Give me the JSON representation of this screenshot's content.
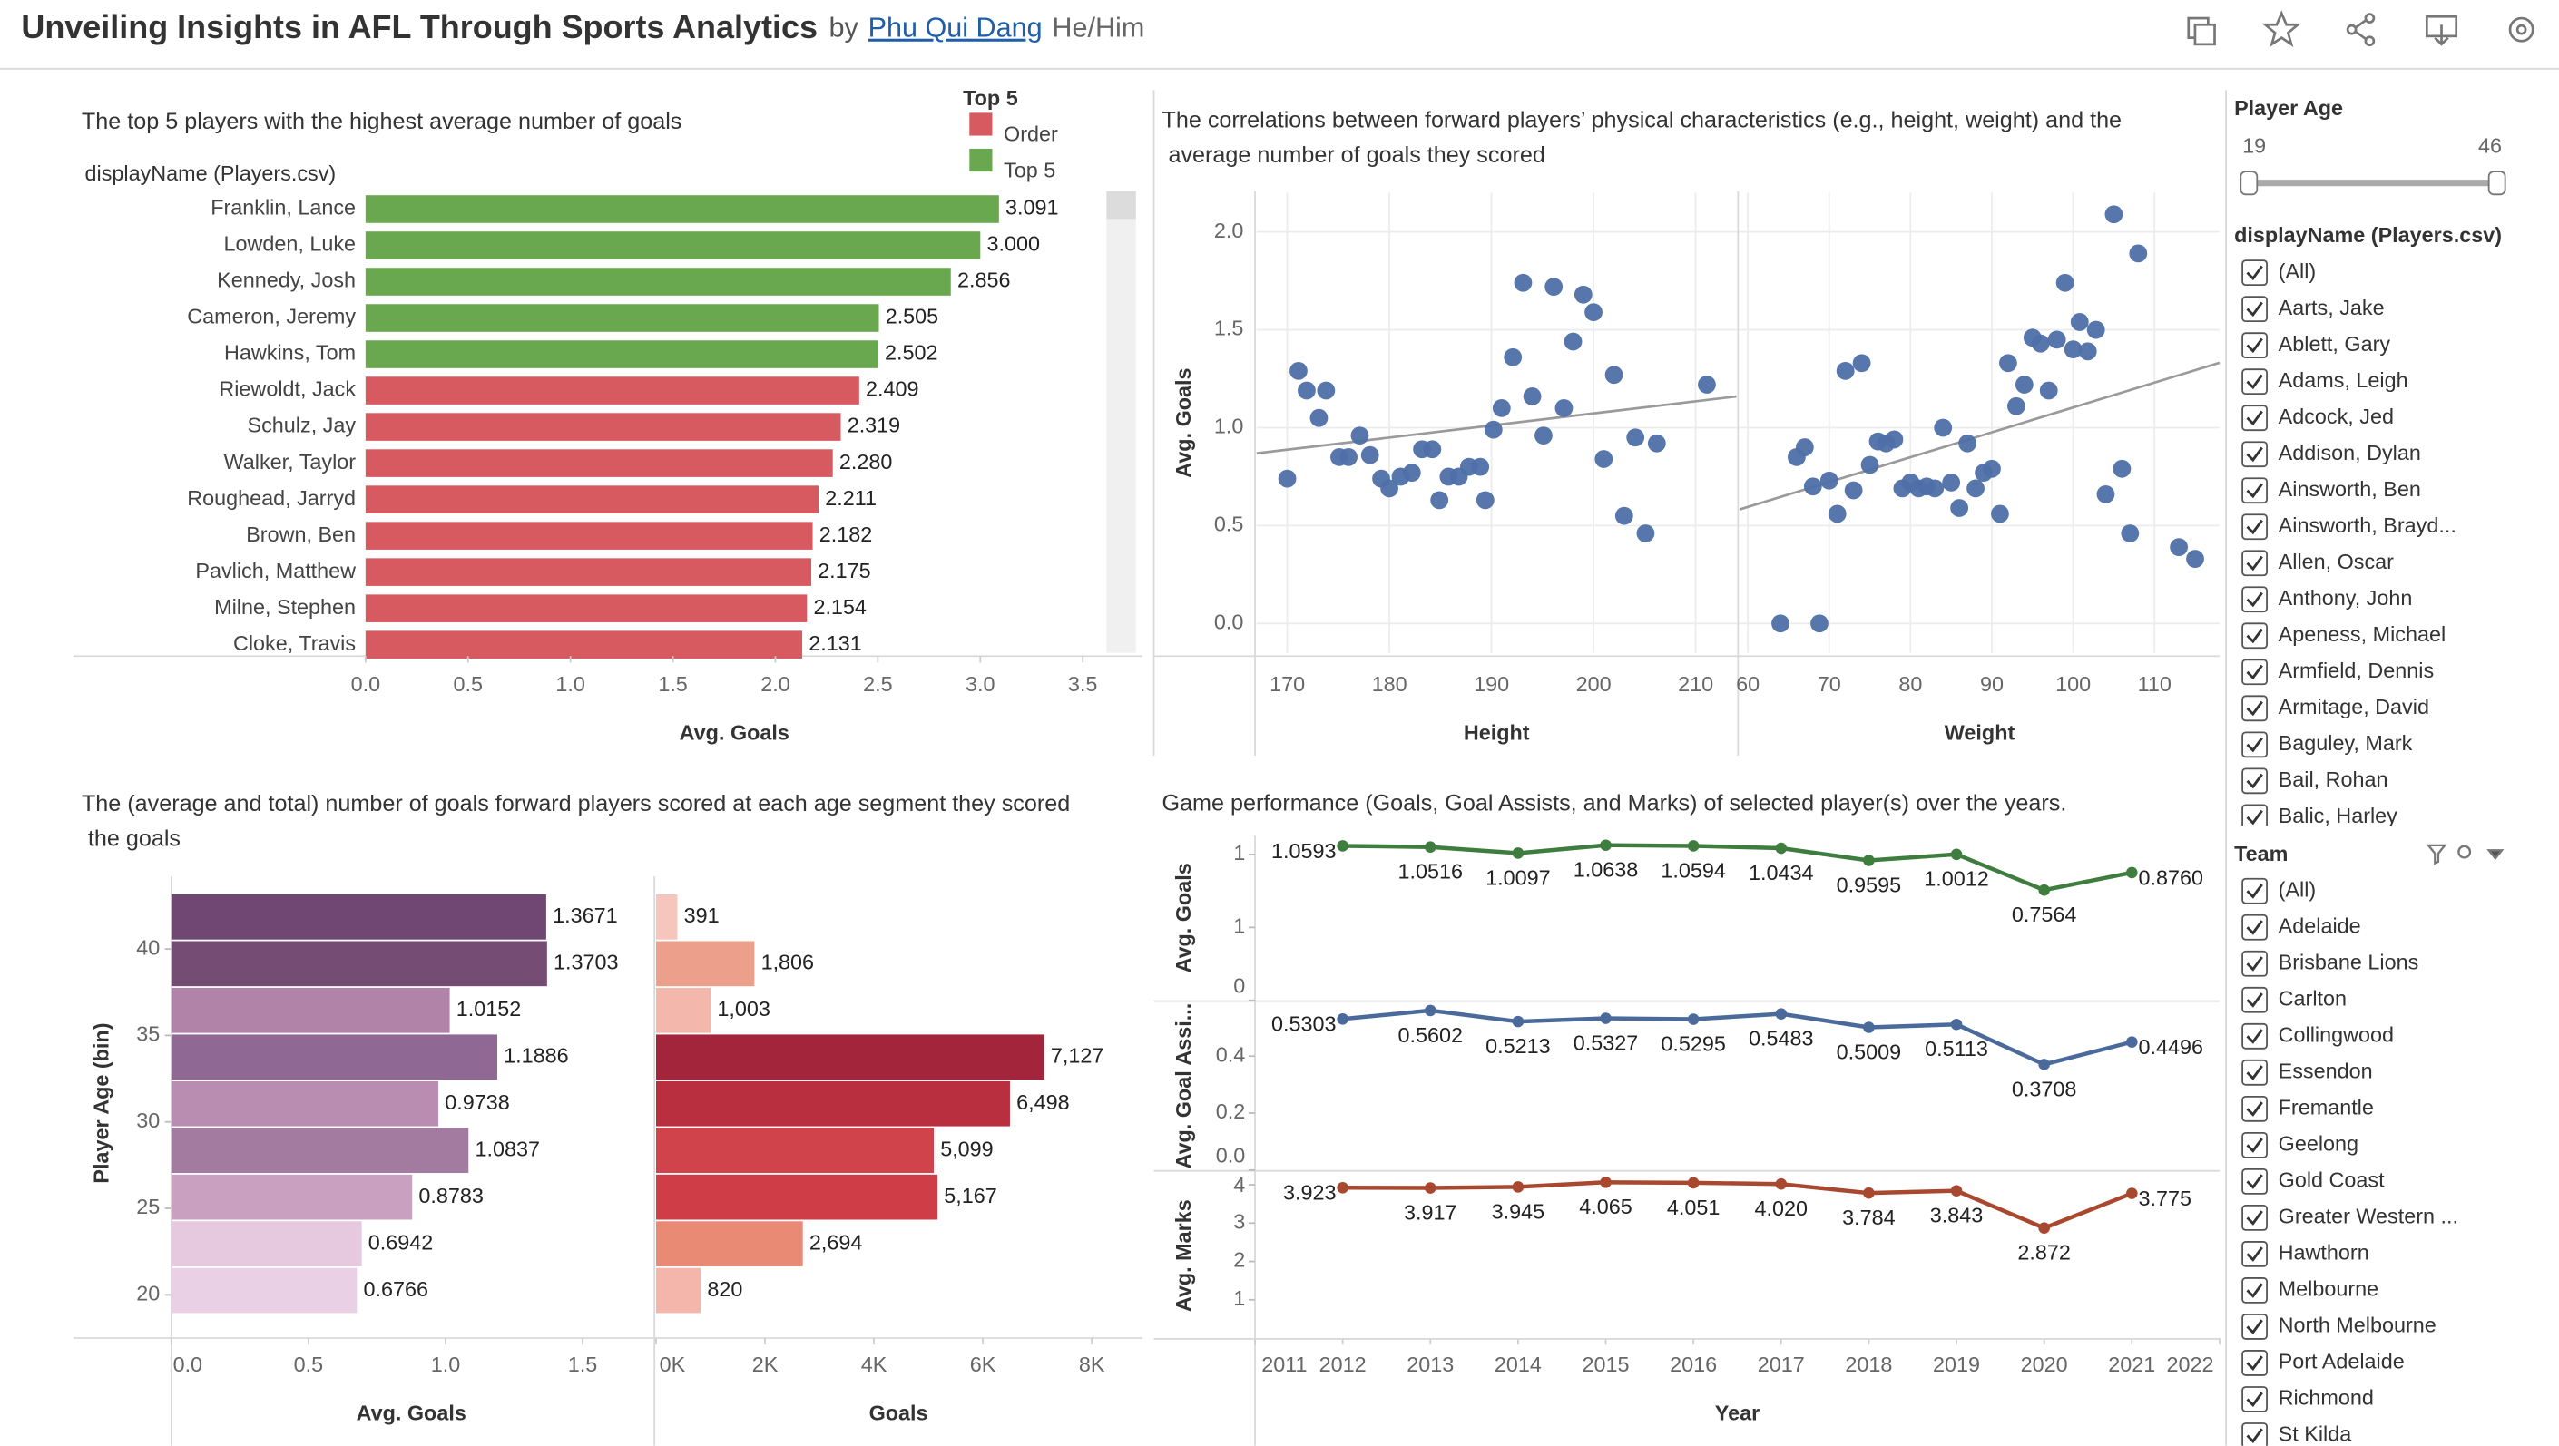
{
  "header": {
    "title": "Unveiling Insights in AFL Through Sports Analytics",
    "by": "by",
    "author": "Phu Qui Dang",
    "pronouns": "He/Him"
  },
  "chart_data": [
    {
      "type": "bar",
      "title": "The top 5 players with the highest average number of goals",
      "category_label": "displayName (Players.csv)",
      "x_label": "Avg. Goals",
      "legend_title": "Top 5",
      "categories": [
        "Franklin, Lance",
        "Lowden, Luke",
        "Kennedy, Josh",
        "Cameron, Jeremy",
        "Hawkins, Tom",
        "Riewoldt, Jack",
        "Schulz, Jay",
        "Walker, Taylor",
        "Roughead, Jarryd",
        "Brown, Ben",
        "Pavlich, Matthew",
        "Milne, Stephen",
        "Cloke, Travis"
      ],
      "series": [
        {
          "name": "Order",
          "color": "#d65a5f",
          "values": [
            null,
            null,
            null,
            null,
            null,
            2.409,
            2.319,
            2.28,
            2.211,
            2.182,
            2.175,
            2.154,
            2.131
          ],
          "value_labels": [
            null,
            null,
            null,
            null,
            null,
            "2.409",
            "2.319",
            "2.280",
            "2.211",
            "2.182",
            "2.175",
            "2.154",
            "2.131"
          ]
        },
        {
          "name": "Top 5",
          "color": "#6aa84f",
          "values": [
            3.091,
            3.0,
            2.856,
            2.505,
            2.502,
            null,
            null,
            null,
            null,
            null,
            null,
            null,
            null
          ],
          "value_labels": [
            "3.091",
            "3.000",
            "2.856",
            "2.505",
            "2.502",
            null,
            null,
            null,
            null,
            null,
            null,
            null,
            null
          ]
        }
      ],
      "xlim": [
        0,
        3.6
      ],
      "xticks": [
        {
          "value": 0,
          "label": "0.0"
        },
        0.5,
        {
          "value": 1,
          "label": "1.0"
        },
        1.5,
        {
          "value": 2,
          "label": "2.0"
        },
        2.5,
        {
          "value": 3,
          "label": "3.0"
        },
        3.5
      ]
    },
    {
      "type": "scatter",
      "title": "The correlations between forward players’ physical characteristics (e.g., height, weight) and the average number of goals they scored",
      "y_label": "Avg. Goals",
      "color": "#4e6fa8",
      "trend_color": "#9a9a9a",
      "grid": true,
      "ylim": [
        -0.15,
        2.2
      ],
      "yticks": [
        {
          "value": 0,
          "label": "0.0"
        },
        0.5,
        {
          "value": 1,
          "label": "1.0"
        },
        1.5,
        {
          "value": 2,
          "label": "2.0"
        }
      ],
      "panels": [
        {
          "x_label": "Height",
          "xlim": [
            167,
            214
          ],
          "xticks": [
            170,
            180,
            190,
            200,
            210
          ],
          "x": [
            170,
            171.1,
            171.9,
            173.8,
            173.1,
            175.1,
            176,
            177.1,
            178.1,
            179.2,
            180,
            181.1,
            182.2,
            183.2,
            184.2,
            184.9,
            185.8,
            186.8,
            187.8,
            188.9,
            189.4,
            190.2,
            191,
            192.1,
            193.1,
            194,
            195.1,
            196.1,
            197.1,
            198,
            199,
            200,
            201,
            202,
            203,
            204.1,
            205.1,
            206.2,
            211.1
          ],
          "values": [
            0.74,
            1.29,
            1.19,
            1.19,
            1.05,
            0.85,
            0.85,
            0.96,
            0.86,
            0.74,
            0.69,
            0.75,
            0.77,
            0.89,
            0.89,
            0.63,
            0.75,
            0.75,
            0.8,
            0.8,
            0.63,
            0.99,
            1.1,
            1.36,
            1.74,
            1.16,
            0.96,
            1.72,
            1.1,
            1.44,
            1.68,
            1.59,
            0.84,
            1.27,
            0.55,
            0.95,
            0.46,
            0.92,
            1.22
          ]
        },
        {
          "x_label": "Weight",
          "xlim": [
            59,
            118
          ],
          "xticks": [
            60,
            70,
            80,
            90,
            100,
            110
          ],
          "x": [
            64,
            68.8,
            66,
            67,
            68,
            70,
            71,
            72,
            74,
            73,
            75,
            76,
            77,
            78,
            79,
            80,
            81,
            82,
            83,
            84,
            85,
            86,
            87,
            88,
            89,
            90,
            91,
            92,
            93,
            94,
            95,
            96,
            97,
            98,
            99,
            100,
            100.8,
            101.8,
            102.8,
            104,
            105,
            106,
            107,
            108,
            113,
            115
          ],
          "values": [
            0,
            0,
            0.85,
            0.9,
            0.7,
            0.73,
            0.56,
            1.29,
            1.33,
            0.68,
            0.81,
            0.93,
            0.92,
            0.94,
            0.69,
            0.72,
            0.69,
            0.7,
            0.69,
            1,
            0.72,
            0.59,
            0.92,
            0.69,
            0.77,
            0.79,
            0.56,
            1.33,
            1.11,
            1.22,
            1.46,
            1.43,
            1.19,
            1.45,
            1.74,
            1.4,
            1.54,
            1.39,
            1.5,
            0.66,
            2.09,
            0.79,
            0.46,
            1.89,
            0.39,
            0.33
          ]
        }
      ]
    },
    {
      "type": "bar",
      "title": "The (average and total) number of goals forward players scored at each age segment they scored the goals",
      "y_label": "Player Age (bin)",
      "bins": [
        18.9,
        21.6,
        24.3,
        27,
        29.7,
        32.4,
        35.1,
        37.8,
        40.5,
        43.2
      ],
      "ylim": [
        17.5,
        44.2
      ],
      "yticks": [
        20,
        25,
        30,
        35,
        40
      ],
      "panels": [
        {
          "x_label": "Avg. Goals",
          "xlim": [
            0,
            1.75
          ],
          "xticks": [
            {
              "value": 0,
              "label": "0.0"
            },
            0.5,
            {
              "value": 1,
              "label": "1.0"
            },
            1.5
          ],
          "values": [
            0.6766,
            0.6942,
            0.8783,
            1.0837,
            0.9738,
            1.1886,
            1.0152,
            1.3703,
            1.3671
          ],
          "colors": [
            "#ead0e4",
            "#e6c8df",
            "#c9a0c0",
            "#a47ba0",
            "#b98cb1",
            "#8f6893",
            "#b283a9",
            "#744c74",
            "#6f4772"
          ]
        },
        {
          "x_label": "Goals",
          "xlim": [
            0,
            8900
          ],
          "xticks": [
            {
              "value": 0,
              "label": "0K"
            },
            {
              "value": 2000,
              "label": "2K"
            },
            {
              "value": 4000,
              "label": "4K"
            },
            {
              "value": 6000,
              "label": "6K"
            },
            {
              "value": 8000,
              "label": "8K"
            }
          ],
          "values": [
            820,
            2694,
            5167,
            5099,
            6498,
            7127,
            1003,
            1806,
            391
          ],
          "value_labels": [
            "820",
            "2,694",
            "5,167",
            "5,099",
            "6,498",
            "7,127",
            "1,003",
            "1,806",
            "391"
          ],
          "colors": [
            "#f4b6aa",
            "#e98a74",
            "#cf3e46",
            "#d1434a",
            "#b92f3f",
            "#a2253b",
            "#f3b8ab",
            "#eca08c",
            "#f6c6bc"
          ]
        }
      ]
    },
    {
      "type": "line",
      "title": "Game performance (Goals, Goal Assists, and Marks) of selected player(s) over the years.",
      "x_label": "Year",
      "x": [
        2012,
        2013,
        2014,
        2015,
        2016,
        2017,
        2018,
        2019,
        2020,
        2021
      ],
      "xlim": [
        2011,
        2022
      ],
      "xticks": [
        2011,
        2012,
        2013,
        2014,
        2015,
        2016,
        2017,
        2018,
        2019,
        2020,
        2021,
        2022
      ],
      "panels": [
        {
          "y_label": "Avg. Goals",
          "color": "#3f7d3f",
          "ylim": [
            0,
            1.13
          ],
          "yticks": [
            0,
            {
              "value": 0.5,
              "label": "1"
            },
            1
          ],
          "values": [
            1.0593,
            1.0516,
            1.0097,
            1.0638,
            1.0594,
            1.0434,
            0.9595,
            1.0012,
            0.7564,
            0.876
          ],
          "value_labels": [
            "1.0593",
            "1.0516",
            "1.0097",
            "1.0638",
            "1.0594",
            "1.0434",
            "0.9595",
            "1.0012",
            "0.7564",
            "0.8760"
          ]
        },
        {
          "y_label": "Avg. Goal Assi...",
          "color": "#4a6a9b",
          "ylim": [
            0,
            0.59
          ],
          "yticks": [
            {
              "value": 0,
              "label": "0.0"
            },
            0.2,
            0.4
          ],
          "values": [
            0.5303,
            0.5602,
            0.5213,
            0.5327,
            0.5295,
            0.5483,
            0.5009,
            0.5113,
            0.3708,
            0.4496
          ]
        },
        {
          "y_label": "Avg. Marks",
          "color": "#a8482f",
          "ylim": [
            0,
            4.3
          ],
          "yticks": [
            1,
            2,
            3,
            4
          ],
          "values": [
            3.923,
            3.917,
            3.945,
            4.065,
            4.051,
            4.02,
            3.784,
            3.843,
            2.872,
            3.775
          ],
          "value_labels": [
            "3.923",
            "3.917",
            "3.945",
            "4.065",
            "4.051",
            "4.020",
            "3.784",
            "3.843",
            "2.872",
            "3.775"
          ]
        }
      ]
    }
  ],
  "filters": {
    "player_age": {
      "title": "Player Age",
      "min": 19,
      "max": 46
    },
    "players": {
      "title": "displayName (Players.csv)",
      "items": [
        "(All)",
        "Aarts, Jake",
        "Ablett, Gary",
        "Adams, Leigh",
        "Adcock, Jed",
        "Addison, Dylan",
        "Ainsworth, Ben",
        "Ainsworth, Brayd...",
        "Allen, Oscar",
        "Anthony, John",
        "Apeness, Michael",
        "Armfield, Dennis",
        "Armitage, David",
        "Baguley, Mark",
        "Bail, Rohan",
        "Balic, Harley"
      ]
    },
    "team": {
      "title": "Team",
      "items": [
        "(All)",
        "Adelaide",
        "Brisbane Lions",
        "Carlton",
        "Collingwood",
        "Essendon",
        "Fremantle",
        "Geelong",
        "Gold Coast",
        "Greater Western ...",
        "Hawthorn",
        "Melbourne",
        "North Melbourne",
        "Port Adelaide",
        "Richmond",
        "St Kilda"
      ]
    }
  }
}
